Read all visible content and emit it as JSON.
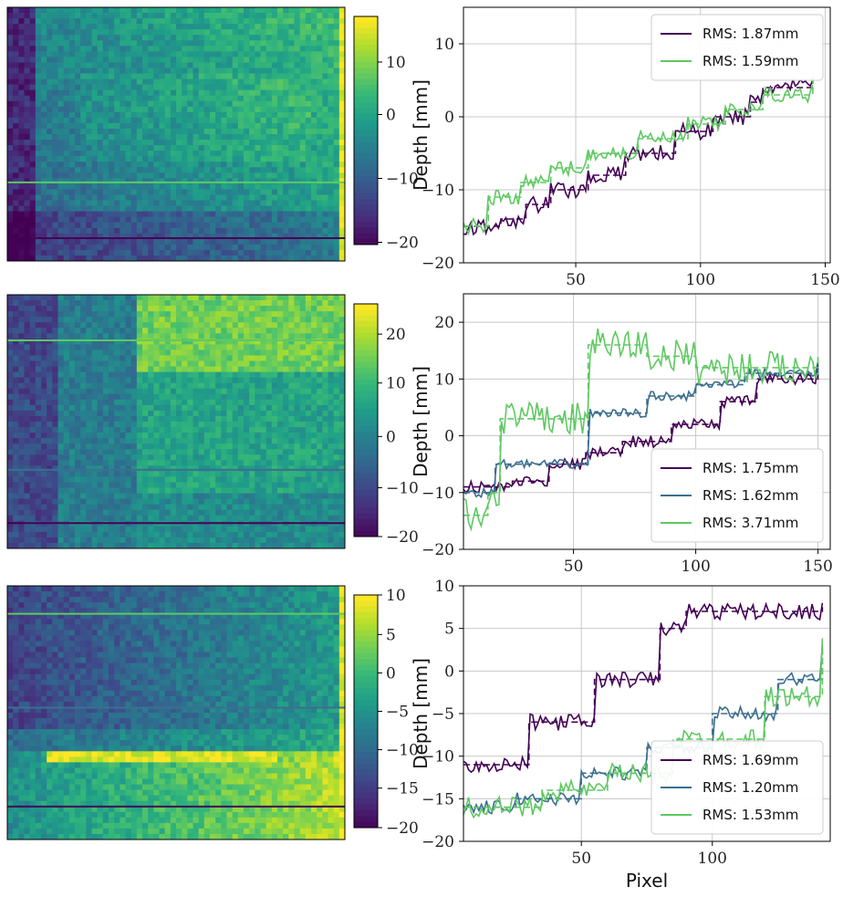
{
  "colors": {
    "purple": "#440154",
    "blue": "#3b6f8f",
    "green": "#5ec962",
    "viridis": [
      "#440154",
      "#482878",
      "#3e4989",
      "#31688e",
      "#26828e",
      "#1f9e89",
      "#35b779",
      "#6ece58",
      "#b5de2b",
      "#fde725"
    ]
  },
  "chart_data": [
    {
      "type": "heatmap",
      "id": "heatmap-1",
      "description_colorbar_ticks": [
        "10",
        "0",
        "−10",
        "−20"
      ],
      "colorbar_range": [
        -20,
        15
      ],
      "profile_lines": [
        {
          "row_fraction_data": 0.69,
          "color": "green"
        },
        {
          "row_fraction_data": 0.91,
          "color": "purple"
        }
      ]
    },
    {
      "type": "line",
      "id": "profile-1",
      "ylabel": "Depth [mm]",
      "xlabel": "",
      "xlim": [
        5,
        152
      ],
      "ylim": [
        -20,
        15
      ],
      "xticks": [
        "50",
        "100",
        "150"
      ],
      "yticks": [
        "10",
        "0",
        "−10",
        "−20"
      ],
      "legend_position": "top-right",
      "series": [
        {
          "name": "RMS: 1.87mm",
          "color": "purple",
          "x": [
            5,
            145
          ],
          "start": -15.5,
          "end": 1.5,
          "noise": 1.5,
          "steps_x": [
            5,
            20,
            30,
            40,
            55,
            70,
            90,
            105,
            120,
            125,
            145
          ],
          "steps_y": [
            -15,
            -14,
            -12,
            -10,
            -8,
            -5,
            -2,
            0,
            2,
            4,
            6
          ]
        },
        {
          "name": "RMS: 1.59mm",
          "color": "green",
          "x": [
            5,
            145
          ],
          "start": -15,
          "end": 2,
          "noise": 1.3,
          "steps_x": [
            5,
            15,
            28,
            40,
            55,
            75,
            95,
            110,
            125,
            145
          ],
          "steps_y": [
            -15,
            -11,
            -9,
            -7,
            -5,
            -3,
            -1,
            1,
            3,
            5
          ]
        }
      ]
    },
    {
      "type": "heatmap",
      "id": "heatmap-2",
      "description_colorbar_ticks": [
        "20",
        "10",
        "0",
        "−10",
        "−20"
      ],
      "colorbar_range": [
        -20,
        25
      ],
      "profile_lines": [
        {
          "row_fraction_data": 0.18,
          "color": "green"
        },
        {
          "row_fraction_data": 0.69,
          "color": "blue"
        },
        {
          "row_fraction_data": 0.9,
          "color": "purple"
        }
      ]
    },
    {
      "type": "line",
      "id": "profile-2",
      "ylabel": "Depth [mm]",
      "xlabel": "",
      "xlim": [
        5,
        155
      ],
      "ylim": [
        -20,
        25
      ],
      "xticks": [
        "50",
        "100",
        "150"
      ],
      "yticks": [
        "20",
        "10",
        "0",
        "−10",
        "−20"
      ],
      "legend_position": "bottom-right",
      "series": [
        {
          "name": "RMS: 1.75mm",
          "color": "purple",
          "x": [
            5,
            150
          ],
          "start": -9,
          "end": 9,
          "noise": 1.3,
          "steps_x": [
            5,
            25,
            40,
            55,
            70,
            90,
            110,
            125,
            150
          ],
          "steps_y": [
            -9,
            -8,
            -5,
            -3,
            -1,
            2,
            6,
            10,
            12
          ]
        },
        {
          "name": "RMS: 1.62mm",
          "color": "blue",
          "x": [
            5,
            150
          ],
          "start": -10,
          "end": 12,
          "noise": 1.0,
          "steps_x": [
            5,
            18,
            55,
            56,
            80,
            100,
            120,
            150
          ],
          "steps_y": [
            -10,
            -5,
            -5,
            4,
            7,
            9,
            11,
            13
          ]
        },
        {
          "name": "RMS: 3.71mm",
          "color": "green",
          "x": [
            5,
            150
          ],
          "start": -14,
          "end": 14,
          "noise": 3.7,
          "steps_x": [
            5,
            15,
            20,
            55,
            56,
            80,
            100,
            150
          ],
          "steps_y": [
            -14,
            -10,
            3,
            3,
            16,
            14,
            12,
            14
          ]
        }
      ]
    },
    {
      "type": "heatmap",
      "id": "heatmap-3",
      "description_colorbar_ticks": [
        "10",
        "5",
        "0",
        "−5",
        "−10",
        "−15",
        "−20"
      ],
      "colorbar_range": [
        -20,
        10
      ],
      "profile_lines": [
        {
          "row_fraction_data": 0.11,
          "color": "green"
        },
        {
          "row_fraction_data": 0.48,
          "color": "blue"
        },
        {
          "row_fraction_data": 0.87,
          "color": "purple"
        }
      ]
    },
    {
      "type": "line",
      "id": "profile-3",
      "ylabel": "Depth [mm]",
      "xlabel": "Pixel",
      "xlim": [
        5,
        145
      ],
      "ylim": [
        -20,
        10
      ],
      "xticks": [
        "50",
        "100"
      ],
      "yticks": [
        "10",
        "5",
        "0",
        "−5",
        "−10",
        "−15",
        "−20"
      ],
      "legend_position": "bottom-right",
      "series": [
        {
          "name": "RMS: 1.69mm",
          "color": "purple",
          "x": [
            5,
            142
          ],
          "start": -12,
          "end": 4,
          "noise": 1.2,
          "steps_x": [
            5,
            30,
            55,
            80,
            90,
            110,
            142
          ],
          "steps_y": [
            -11,
            -6,
            -1,
            5,
            7,
            7,
            7.5
          ]
        },
        {
          "name": "RMS: 1.20mm",
          "color": "blue",
          "x": [
            5,
            142
          ],
          "start": -16,
          "end": 3,
          "noise": 1.0,
          "steps_x": [
            5,
            25,
            50,
            75,
            100,
            125,
            142
          ],
          "steps_y": [
            -16,
            -15,
            -12,
            -9,
            -5,
            -1,
            3
          ]
        },
        {
          "name": "RMS: 1.53mm",
          "color": "green",
          "x": [
            5,
            142
          ],
          "start": -17,
          "end": 2,
          "noise": 1.5,
          "steps_x": [
            5,
            20,
            35,
            60,
            85,
            120,
            142
          ],
          "steps_y": [
            -16,
            -16,
            -14,
            -12,
            -8,
            -3,
            3
          ]
        }
      ]
    }
  ]
}
